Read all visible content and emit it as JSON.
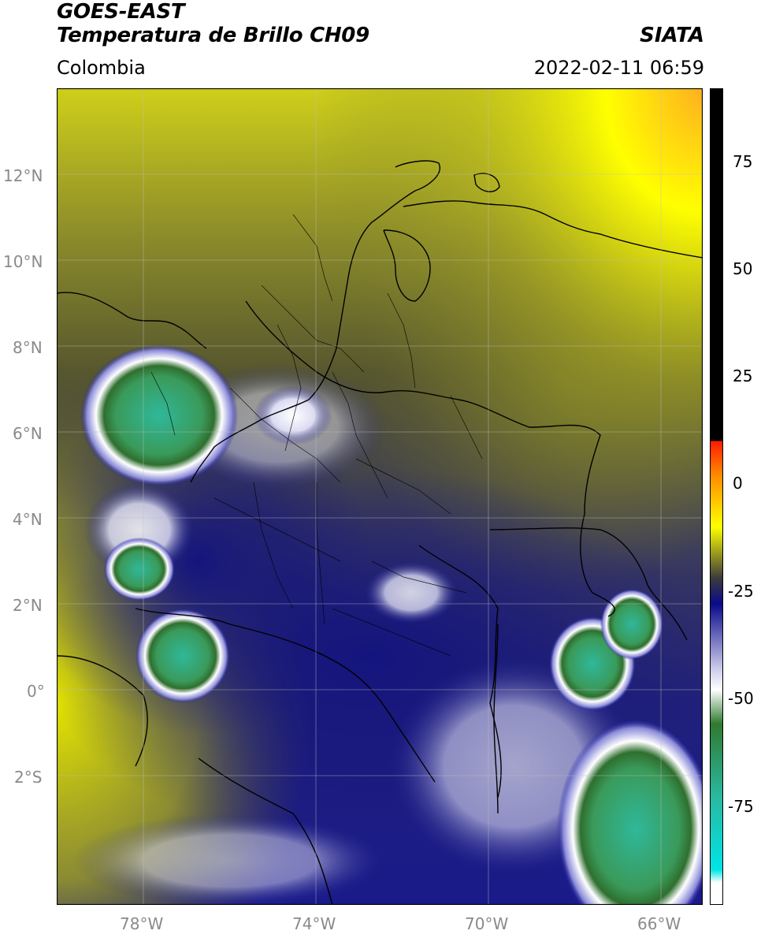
{
  "header": {
    "satellite": "GOES-EAST",
    "product": "Temperatura de Brillo CH09",
    "region": "Colombia",
    "agency": "SIATA",
    "datetime": "2022-02-11 06:59"
  },
  "map": {
    "lat_ticks": [
      "12°N",
      "10°N",
      "8°N",
      "6°N",
      "4°N",
      "2°N",
      "0°",
      "2°S"
    ],
    "lon_ticks": [
      "78°W",
      "74°W",
      "70°W",
      "66°W"
    ],
    "extent": {
      "lon": [
        -80,
        -65
      ],
      "lat": [
        -5,
        14
      ]
    },
    "grid": true
  },
  "colorbar": {
    "labels": [
      "75",
      "50",
      "25",
      "0",
      "-25",
      "-50",
      "-75"
    ],
    "units_range": [
      -100,
      90
    ],
    "stops": [
      {
        "value": 90,
        "color": "#000000"
      },
      {
        "value": 8,
        "color": "#000000"
      },
      {
        "value": 8,
        "color": "#ff1a00"
      },
      {
        "value": 0,
        "color": "#ff8a00"
      },
      {
        "value": -12,
        "color": "#ffff00"
      },
      {
        "value": -24,
        "color": "#3b3b3b"
      },
      {
        "value": -30,
        "color": "#0a0a8a"
      },
      {
        "value": -45,
        "color": "#c9c9ea"
      },
      {
        "value": -50,
        "color": "#ffffff"
      },
      {
        "value": -58,
        "color": "#2f7a2f"
      },
      {
        "value": -75,
        "color": "#2ab8a0"
      },
      {
        "value": -92,
        "color": "#00e5e5"
      },
      {
        "value": -95,
        "color": "#ffffff"
      }
    ]
  }
}
